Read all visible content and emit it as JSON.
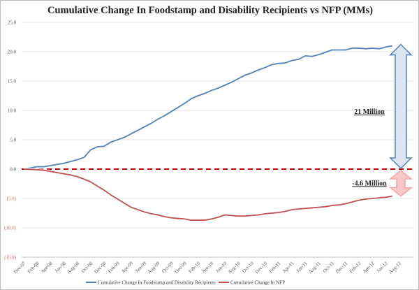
{
  "chart_data": {
    "type": "line",
    "title": "Cumulative Change In Foodstamp and Disability Recipients vs NFP (MMs)",
    "xlabel": "",
    "ylabel": "",
    "ylim": [
      -15,
      25
    ],
    "y_ticks": [
      "25.0",
      "20.0",
      "15.0",
      "10.0",
      "5.0",
      "0.0",
      "(5.0)",
      "(10.0)",
      "(15.0)"
    ],
    "y_tick_values": [
      25,
      20,
      15,
      10,
      5,
      0,
      -5,
      -10,
      -15
    ],
    "grid": true,
    "legend_position": "bottom",
    "x_tick_labels": [
      "Dec-07",
      "Feb-08",
      "Apr-08",
      "Jun-08",
      "Aug-08",
      "Oct-08",
      "Dec-08",
      "Feb-09",
      "Apr-09",
      "Jun-09",
      "Aug-09",
      "Oct-09",
      "Dec-09",
      "Feb-10",
      "Apr-10",
      "Jun-10",
      "Aug-10",
      "Oct-10",
      "Dec-10",
      "Feb-11",
      "Apr-11",
      "Jun-11",
      "Aug-11",
      "Oct-11",
      "Dec-11",
      "Feb-12",
      "Apr-12",
      "Jun-12",
      "Aug-12"
    ],
    "x_start": "Dec-07",
    "x_frequency": "monthly",
    "series": [
      {
        "name": "Cumulative Change In Foodstamp and Disability Recipients",
        "color": "#4f81bd",
        "values": [
          0,
          0.2,
          0.4,
          0.4,
          0.6,
          0.8,
          1.0,
          1.3,
          1.6,
          2.0,
          3.3,
          3.8,
          3.9,
          4.6,
          5.0,
          5.4,
          6.0,
          6.6,
          7.2,
          7.8,
          8.5,
          9.1,
          9.8,
          10.5,
          11.2,
          12.0,
          12.5,
          12.9,
          13.4,
          13.8,
          14.3,
          14.8,
          15.4,
          16.0,
          16.4,
          16.9,
          17.3,
          17.8,
          18.0,
          18.1,
          18.5,
          18.7,
          19.3,
          19.2,
          19.5,
          19.9,
          20.3,
          20.3,
          20.3,
          20.6,
          20.6,
          20.5,
          20.6,
          20.5,
          20.8,
          21.0
        ]
      },
      {
        "name": "Cumulative Change In NFP",
        "color": "#c0504d",
        "values": [
          0,
          -0.05,
          -0.1,
          -0.2,
          -0.4,
          -0.6,
          -0.8,
          -1.0,
          -1.3,
          -1.7,
          -2.2,
          -2.9,
          -3.6,
          -4.4,
          -5.1,
          -5.8,
          -6.5,
          -6.9,
          -7.3,
          -7.6,
          -7.8,
          -8.1,
          -8.3,
          -8.4,
          -8.5,
          -8.7,
          -8.7,
          -8.7,
          -8.5,
          -8.2,
          -7.8,
          -7.9,
          -8.0,
          -8.0,
          -7.9,
          -7.8,
          -7.6,
          -7.5,
          -7.4,
          -7.2,
          -6.9,
          -6.8,
          -6.7,
          -6.6,
          -6.5,
          -6.4,
          -6.2,
          -6.1,
          -5.9,
          -5.6,
          -5.3,
          -5.1,
          -5.0,
          -4.9,
          -4.8,
          -4.6
        ]
      }
    ],
    "annotations": [
      {
        "text": "21 Million",
        "color": "#4f81bd"
      },
      {
        "text": "-4.6 Million",
        "color": "#f4a6a6"
      }
    ],
    "zero_line_color": "#c00000"
  }
}
